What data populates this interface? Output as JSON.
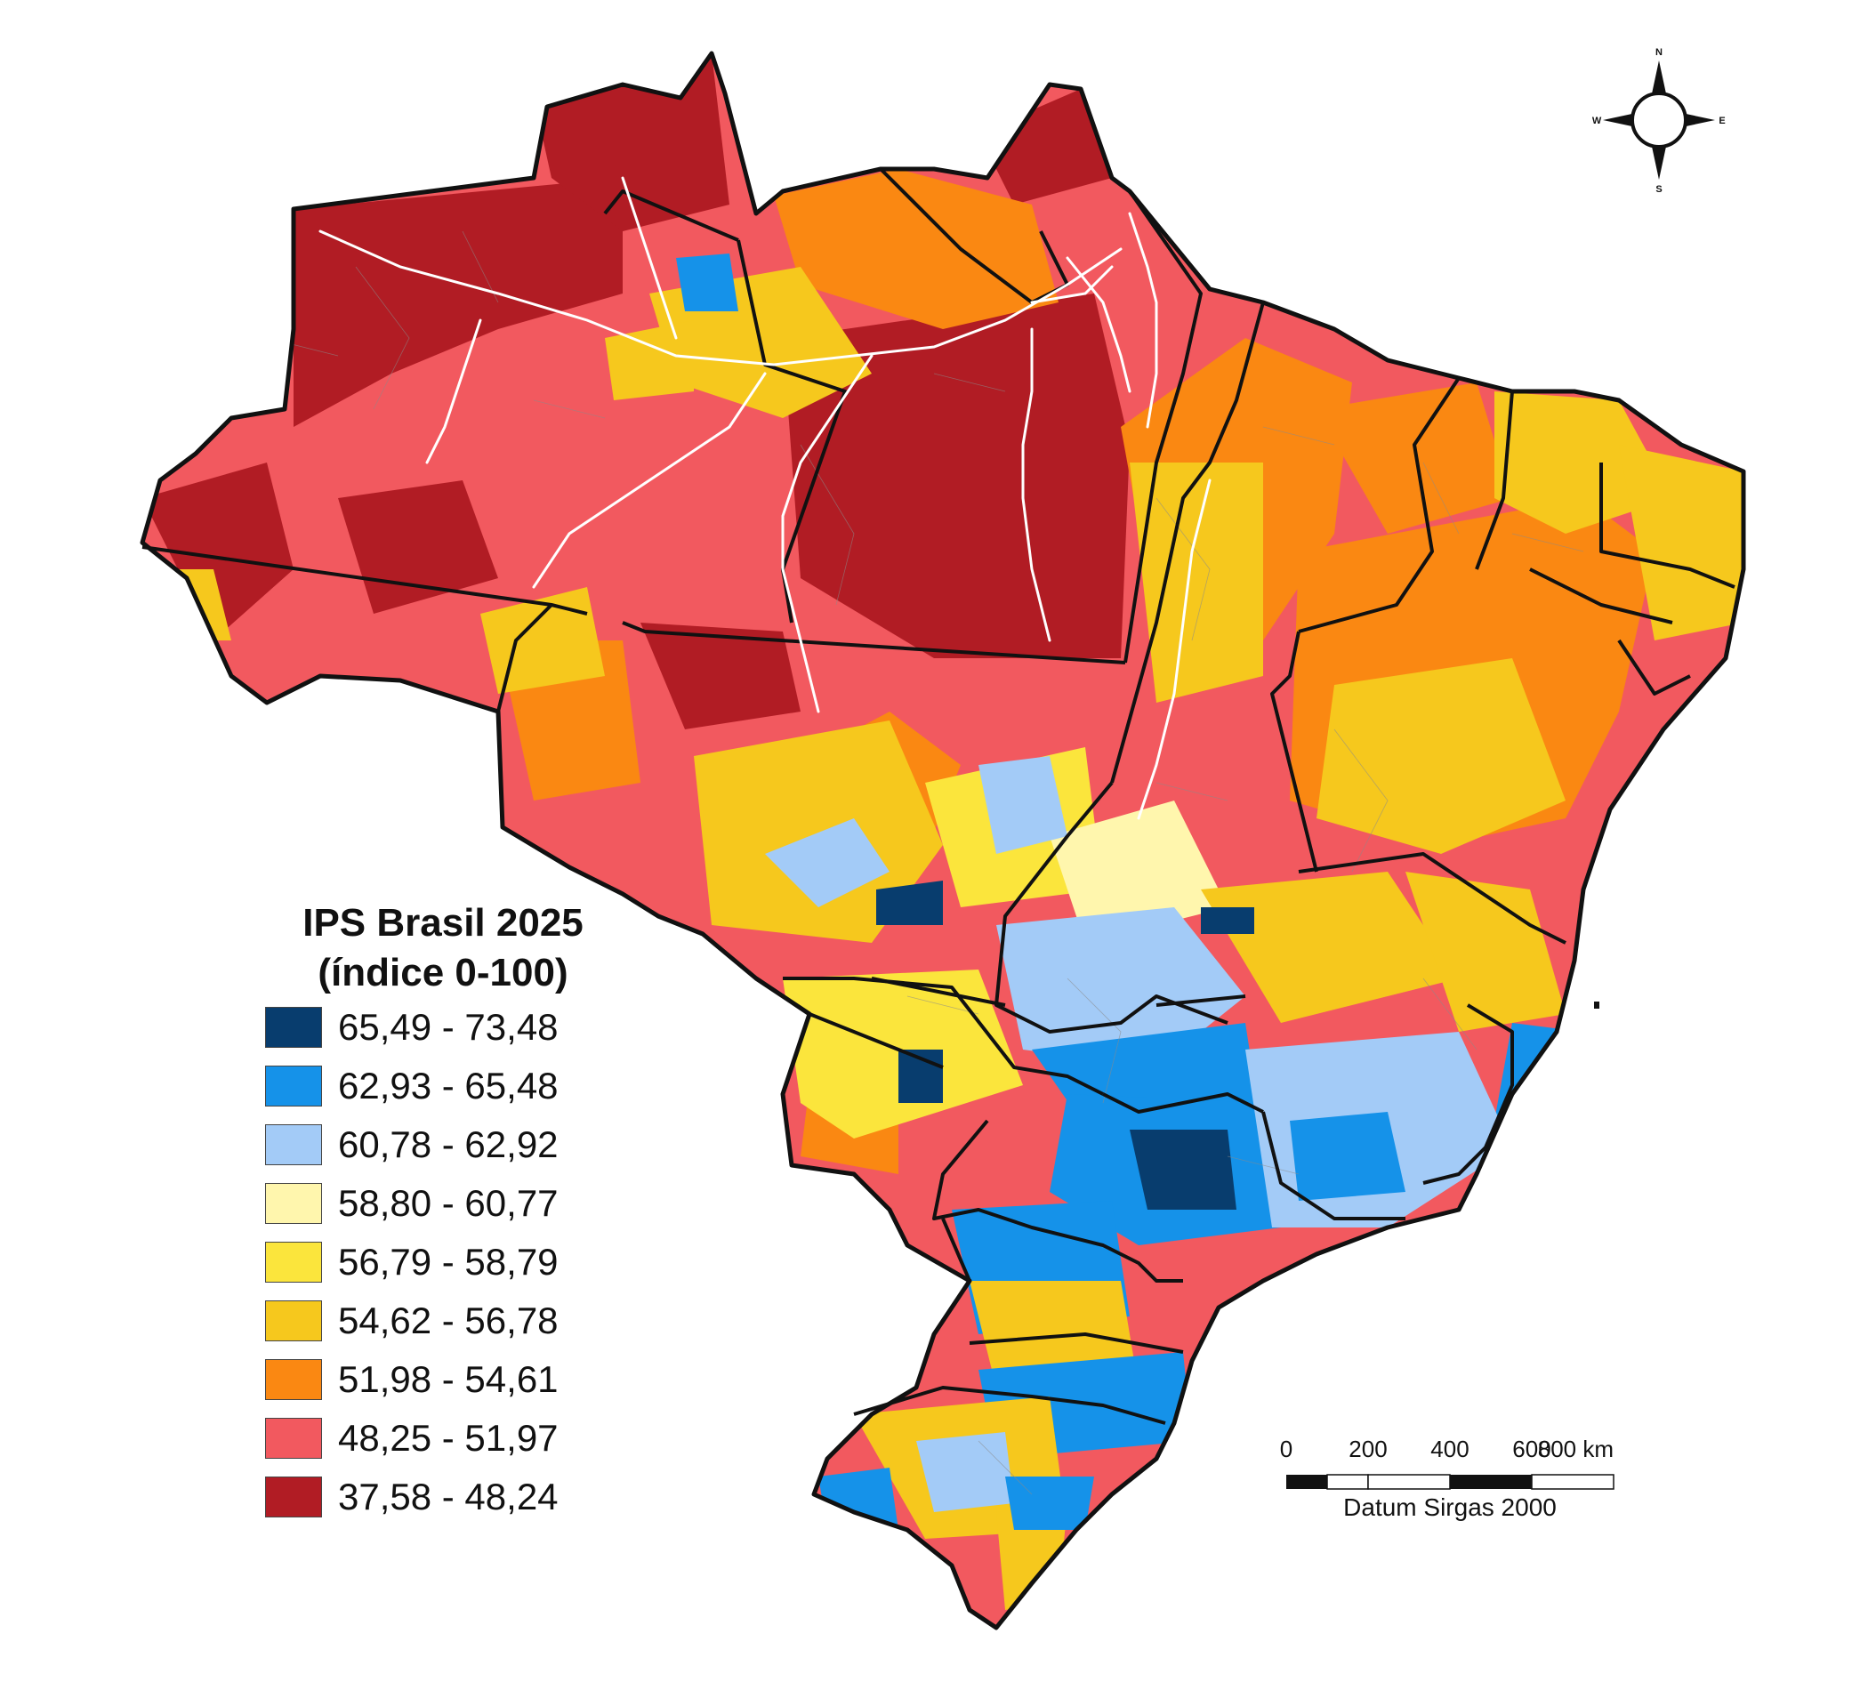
{
  "legend": {
    "title_line1": "IPS Brasil 2025",
    "title_line2": "(índice 0-100)",
    "classes": [
      {
        "label": "65,49 - 73,48",
        "color": "#083d6e"
      },
      {
        "label": "62,93 - 65,48",
        "color": "#1592e9"
      },
      {
        "label": "60,78 - 62,92",
        "color": "#a3cbf7"
      },
      {
        "label": "58,80 - 60,77",
        "color": "#fff6ad"
      },
      {
        "label": "56,79 - 58,79",
        "color": "#fbe53c"
      },
      {
        "label": "54,62 - 56,78",
        "color": "#f6c81d"
      },
      {
        "label": "51,98 - 54,61",
        "color": "#fa8812"
      },
      {
        "label": "48,25 - 51,97",
        "color": "#f2595f"
      },
      {
        "label": "37,58 - 48,24",
        "color": "#b11c24"
      }
    ]
  },
  "scale_bar": {
    "ticks": [
      "0",
      "200",
      "400",
      "600",
      "800 km"
    ],
    "datum": "Datum Sirgas 2000"
  },
  "compass": {
    "n": "N",
    "s": "S",
    "e": "E",
    "w": "W"
  }
}
